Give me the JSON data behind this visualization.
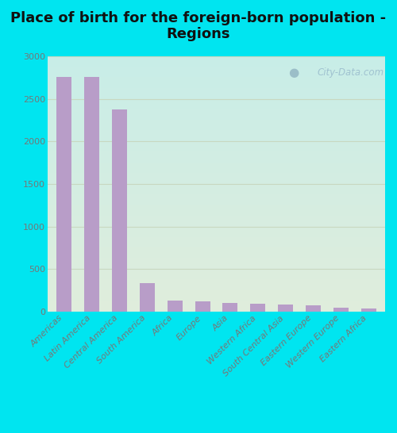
{
  "title": "Place of birth for the foreign-born population -\nRegions",
  "categories": [
    "Americas",
    "Latin America",
    "Central America",
    "South America",
    "Africa",
    "Europe",
    "Asia",
    "Western Africa",
    "South Central Asia",
    "Eastern Europe",
    "Western Europe",
    "Eastern Africa"
  ],
  "values": [
    2760,
    2755,
    2380,
    335,
    130,
    120,
    100,
    95,
    88,
    72,
    50,
    35
  ],
  "bar_color": "#b89dc8",
  "background_outer": "#00e5f0",
  "gradient_top": "#c8ede8",
  "gradient_bottom": "#e0eedc",
  "grid_color": "#c8d8c0",
  "ylim": [
    0,
    3000
  ],
  "yticks": [
    0,
    500,
    1000,
    1500,
    2000,
    2500,
    3000
  ],
  "title_fontsize": 13,
  "tick_fontsize": 8,
  "watermark": "City-Data.com",
  "ylabel_color": "#777777",
  "xlabel_color": "#777777"
}
